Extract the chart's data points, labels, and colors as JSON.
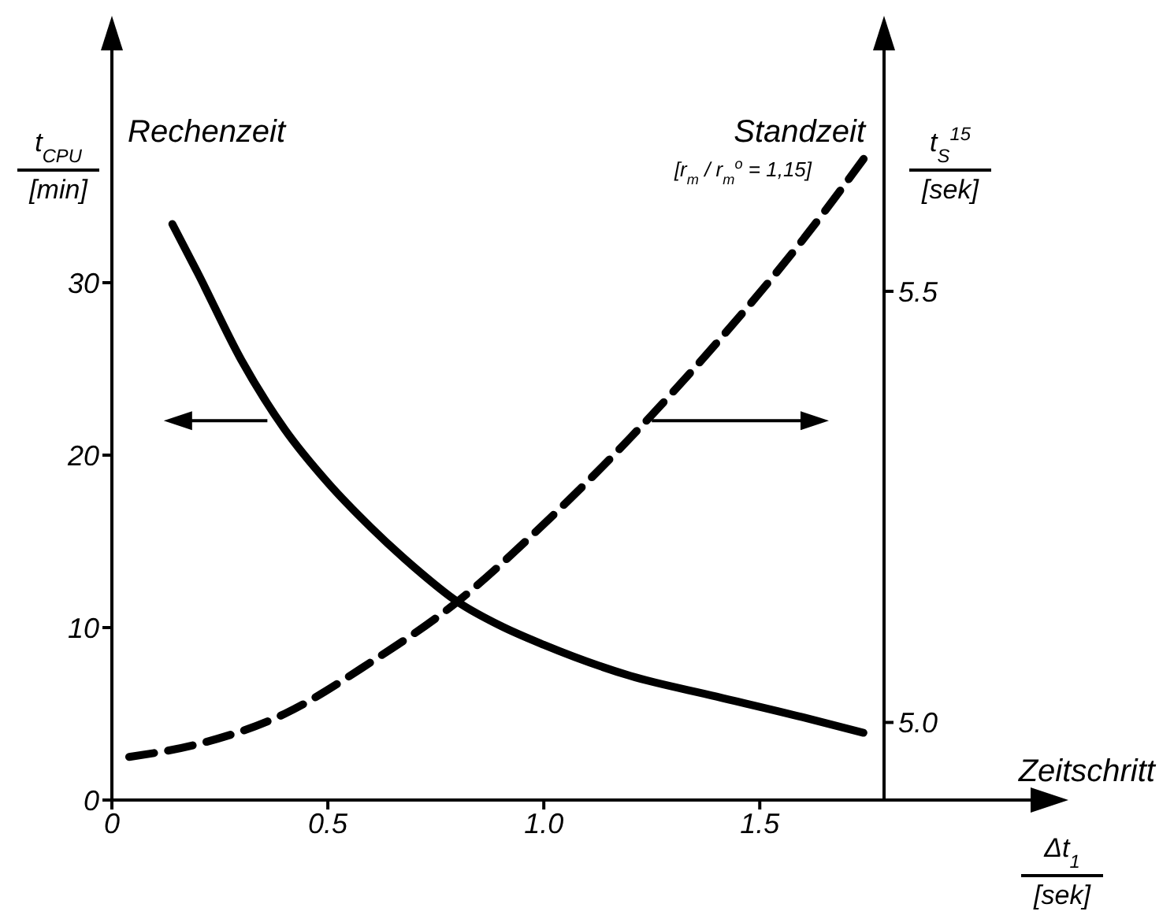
{
  "chart_data": {
    "type": "line",
    "xlabel": "Δt$_{1}$ [sek]",
    "ylabel": "t$_{CPU}$ [min]",
    "y2label": "t$_{S}$$^{15}$ [sek]",
    "annotations": [
      "Zeitschritt",
      "[r$_{m}$ / r$_{m}$$^{o}$ = 1,15]"
    ],
    "series": [
      {
        "name": "Rechenzeit",
        "color": "#000000",
        "line_style": "solid",
        "x": [
          0.14,
          0.2,
          0.3,
          0.4,
          0.5,
          0.6,
          0.7,
          0.8,
          0.9,
          1.0,
          1.2,
          1.4,
          1.6,
          1.74
        ],
        "values": [
          33.4,
          30.5,
          25.5,
          21.5,
          18.4,
          15.8,
          13.5,
          11.5,
          10.1,
          9.0,
          7.2,
          6.0,
          4.8,
          3.9
        ]
      },
      {
        "name": "Standzeit",
        "color": "#000000",
        "line_style": "dashed",
        "axis": "y2",
        "x": [
          0.04,
          0.2,
          0.4,
          0.6,
          0.8,
          1.0,
          1.2,
          1.4,
          1.6,
          1.75
        ],
        "values": [
          4.96,
          4.975,
          5.01,
          5.07,
          5.14,
          5.23,
          5.33,
          5.44,
          5.56,
          5.66
        ]
      }
    ],
    "xlim": [
      0,
      2.2
    ],
    "xticks": [
      0,
      0.5,
      {
        "value": 1.0,
        "label": "1.0"
      },
      1.5
    ],
    "ylim": [
      0,
      40
    ],
    "yticks": [
      0,
      10,
      20,
      30
    ],
    "y2lim": [
      4.91,
      5.71
    ],
    "y2ticks": [
      {
        "value": 5.0,
        "label": "5.0"
      },
      5.5
    ],
    "grid": false,
    "legend": "top",
    "marker": "none"
  }
}
